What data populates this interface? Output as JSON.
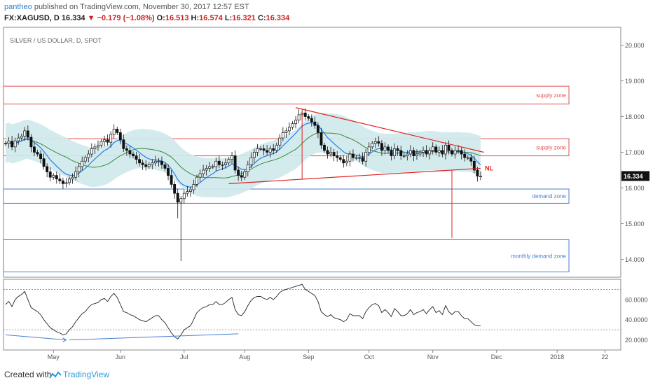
{
  "header": {
    "user": "pantheo",
    "published": " published on TradingView.com, November 30, 2017 12:57 EST",
    "symbol": "FX:XAGUSD, D",
    "price": "16.334",
    "change": "−0.179 (−1.08%)",
    "o_label": "O:",
    "o": "16.513",
    "h_label": "H:",
    "h": "16.574",
    "l_label": "L:",
    "l": "16.321",
    "c_label": "C:",
    "c": "16.334"
  },
  "footer": {
    "created": "Created with",
    "brand": "TradingView"
  },
  "colors": {
    "up": "#ffffff",
    "down": "#111111",
    "candle_border": "#111111",
    "bands": "#cfe9ec",
    "ema": "#2a7de1",
    "sma": "#3a8a3a",
    "supply": "#e05050",
    "demand": "#4a7fd0",
    "pattern": "#dd2222",
    "rsi": "#222222",
    "rsi_div": "#4a7fd0",
    "grid": "#dddddd"
  },
  "chart_data": {
    "type": "candlestick",
    "title": "SILVER / US DOLLAR, D, SPOT",
    "last_price": "16.334",
    "x_ticks": [
      "May",
      "Jun",
      "Jul",
      "Aug",
      "Sep",
      "Oct",
      "Nov",
      "Dec",
      "2018",
      "22"
    ],
    "y_ticks": [
      "20.000",
      "19.000",
      "18.000",
      "17.000",
      "16.000",
      "15.000",
      "14.000"
    ],
    "ylim": [
      13.5,
      20.5
    ],
    "candle_count": 150,
    "closes": [
      17.25,
      17.31,
      17.15,
      17.32,
      17.4,
      17.45,
      17.6,
      17.42,
      17.15,
      17.0,
      16.95,
      16.82,
      16.6,
      16.45,
      16.3,
      16.35,
      16.25,
      16.2,
      16.12,
      16.15,
      16.25,
      16.3,
      16.45,
      16.6,
      16.75,
      16.85,
      16.95,
      17.1,
      17.15,
      17.2,
      17.3,
      17.35,
      17.28,
      17.5,
      17.65,
      17.55,
      17.35,
      17.1,
      17.05,
      16.95,
      16.9,
      16.8,
      16.7,
      16.65,
      16.6,
      16.65,
      16.7,
      16.75,
      16.75,
      16.65,
      16.55,
      16.35,
      16.1,
      15.85,
      15.6,
      15.7,
      15.85,
      15.9,
      15.95,
      16.1,
      16.3,
      16.4,
      16.5,
      16.55,
      16.6,
      16.6,
      16.75,
      16.65,
      16.65,
      16.7,
      16.8,
      16.9,
      16.5,
      16.35,
      16.3,
      16.45,
      16.65,
      16.85,
      17.0,
      17.1,
      17.1,
      17.05,
      17.0,
      17.1,
      17.05,
      17.2,
      17.4,
      17.55,
      17.6,
      17.7,
      17.8,
      17.9,
      18.05,
      18.1,
      18.0,
      17.95,
      17.85,
      17.75,
      17.55,
      17.2,
      17.05,
      16.95,
      17.0,
      16.9,
      16.85,
      16.8,
      16.7,
      16.75,
      16.95,
      16.85,
      16.85,
      16.85,
      16.75,
      17.0,
      17.15,
      17.25,
      17.3,
      17.25,
      17.05,
      17.15,
      17.05,
      16.9,
      17.1,
      17.05,
      16.9,
      16.9,
      16.95,
      17.05,
      16.9,
      16.95,
      17.0,
      17.05,
      16.95,
      17.05,
      17.15,
      17.0,
      17.05,
      16.95,
      17.2,
      17.05,
      16.95,
      17.05,
      17.05,
      16.95,
      16.85,
      16.85,
      16.75,
      16.5,
      16.33,
      16.33
    ],
    "wick_extremes": [
      {
        "index": 55,
        "low": 13.95
      },
      {
        "index": 54,
        "low": 15.15
      }
    ],
    "bollinger_width": 0.55,
    "zones": [
      {
        "name": "supply zone",
        "low": 18.35,
        "high": 18.85,
        "kind": "supply",
        "extends_from": "start"
      },
      {
        "name": "supply zone",
        "low": 16.9,
        "high": 17.38,
        "kind": "supply",
        "extends_from": "start"
      },
      {
        "name": "demand zone",
        "low": 15.57,
        "high": 15.97,
        "kind": "demand",
        "extends_from": "start"
      },
      {
        "name": "monthly demand zone",
        "low": 13.65,
        "high": 14.55,
        "kind": "demand",
        "extends_from": "start"
      }
    ],
    "triangle": {
      "upper": [
        {
          "index": 91,
          "price": 18.25
        },
        {
          "index": 150,
          "price": 17.0
        }
      ],
      "neckline": [
        {
          "index": 70,
          "price": 16.12
        },
        {
          "index": 149,
          "price": 16.55
        }
      ],
      "neckline_label": "NL",
      "measure_sep": {
        "index": 93,
        "top": 18.12,
        "bottom": 16.25
      },
      "measure_dec": {
        "index": 140,
        "top": 16.5,
        "bottom": 14.6
      }
    },
    "rsi": {
      "y_ticks": [
        "60.0000",
        "40.0000",
        "20.0000"
      ],
      "ylim": [
        10,
        80
      ],
      "levels": [
        70,
        30
      ],
      "values": [
        55,
        58,
        53,
        60,
        63,
        65,
        68,
        60,
        52,
        50,
        48,
        45,
        40,
        36,
        32,
        30,
        28,
        27,
        25,
        26,
        30,
        33,
        38,
        42,
        46,
        48,
        52,
        55,
        56,
        57,
        60,
        61,
        58,
        63,
        66,
        62,
        55,
        48,
        47,
        45,
        44,
        42,
        40,
        39,
        38,
        40,
        42,
        44,
        44,
        40,
        37,
        32,
        27,
        23,
        21,
        25,
        30,
        32,
        34,
        40,
        47,
        50,
        52,
        53,
        55,
        55,
        58,
        55,
        55,
        57,
        60,
        62,
        50,
        45,
        44,
        48,
        54,
        59,
        62,
        63,
        63,
        61,
        60,
        62,
        60,
        63,
        67,
        69,
        70,
        71,
        72,
        73,
        74,
        75,
        70,
        68,
        66,
        64,
        58,
        48,
        45,
        43,
        45,
        42,
        41,
        40,
        38,
        40,
        46,
        44,
        44,
        44,
        41,
        48,
        52,
        55,
        56,
        54,
        47,
        50,
        47,
        43,
        51,
        48,
        44,
        44,
        46,
        50,
        45,
        47,
        48,
        50,
        46,
        50,
        53,
        47,
        49,
        45,
        54,
        48,
        45,
        48,
        48,
        44,
        41,
        41,
        38,
        35,
        34,
        34
      ],
      "divergence": [
        {
          "index": 0,
          "value": 25
        },
        {
          "index": 19,
          "value": 20
        },
        {
          "index": 20,
          "value": 20
        },
        {
          "index": 73,
          "value": 26
        }
      ]
    }
  }
}
